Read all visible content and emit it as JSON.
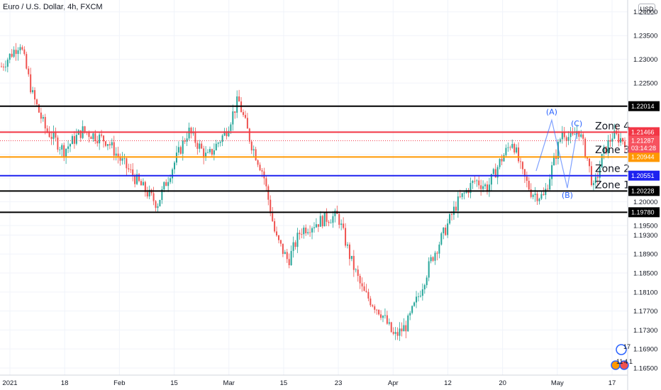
{
  "header": {
    "title": "Euro / U.S. Dollar, 4h, FXCM",
    "currency": "USD"
  },
  "colors": {
    "up": "#26a69a",
    "down": "#ef5350",
    "black": "#000000",
    "red": "#f23645",
    "orange": "#ff9800",
    "blue": "#1e22f0",
    "wave": "#2962ff"
  },
  "chart_data": {
    "type": "candlestick",
    "title": "Euro / U.S. Dollar, 4h, FXCM",
    "ylim": [
      1.1635,
      1.2425
    ],
    "y_ticks": [
      {
        "value": 1.24,
        "label": "1.24000"
      },
      {
        "value": 1.235,
        "label": "1.23500"
      },
      {
        "value": 1.23,
        "label": "1.23000"
      },
      {
        "value": 1.225,
        "label": "1.22500"
      },
      {
        "value": 1.22,
        "label": "1.22000"
      },
      {
        "value": 1.215,
        "label": "1.21500"
      },
      {
        "value": 1.21,
        "label": "1.21000"
      },
      {
        "value": 1.205,
        "label": "1.20500"
      },
      {
        "value": 1.2,
        "label": "1.20000"
      },
      {
        "value": 1.195,
        "label": "1.19500"
      },
      {
        "value": 1.193,
        "label": "1.19300"
      },
      {
        "value": 1.189,
        "label": "1.18900"
      },
      {
        "value": 1.185,
        "label": "1.18500"
      },
      {
        "value": 1.181,
        "label": "1.18100"
      },
      {
        "value": 1.177,
        "label": "1.17700"
      },
      {
        "value": 1.173,
        "label": "1.17300"
      },
      {
        "value": 1.169,
        "label": "1.16900"
      },
      {
        "value": 1.165,
        "label": "1.16500"
      }
    ],
    "x_ticks": [
      "2021",
      "18",
      "Feb",
      "15",
      "Mar",
      "15",
      "23",
      "Apr",
      "12",
      "20",
      "May",
      "17"
    ],
    "price_path": [
      [
        0,
        1.2285
      ],
      [
        0.03,
        1.2335
      ],
      [
        0.05,
        1.2225
      ],
      [
        0.07,
        1.2155
      ],
      [
        0.1,
        1.2108
      ],
      [
        0.13,
        1.215
      ],
      [
        0.17,
        1.2128
      ],
      [
        0.19,
        1.209
      ],
      [
        0.22,
        1.204
      ],
      [
        0.25,
        1.1995
      ],
      [
        0.27,
        1.206
      ],
      [
        0.3,
        1.215
      ],
      [
        0.33,
        1.2092
      ],
      [
        0.36,
        1.2148
      ],
      [
        0.38,
        1.2215
      ],
      [
        0.4,
        1.2125
      ],
      [
        0.42,
        1.206
      ],
      [
        0.44,
        1.1925
      ],
      [
        0.46,
        1.1875
      ],
      [
        0.48,
        1.194
      ],
      [
        0.52,
        1.1965
      ],
      [
        0.54,
        1.197
      ],
      [
        0.56,
        1.188
      ],
      [
        0.58,
        1.181
      ],
      [
        0.61,
        1.1765
      ],
      [
        0.63,
        1.1715
      ],
      [
        0.65,
        1.174
      ],
      [
        0.67,
        1.1805
      ],
      [
        0.69,
        1.188
      ],
      [
        0.71,
        1.1935
      ],
      [
        0.73,
        1.1995
      ],
      [
        0.75,
        1.203
      ],
      [
        0.76,
        1.2045
      ],
      [
        0.78,
        1.203
      ],
      [
        0.8,
        1.2085
      ],
      [
        0.82,
        1.213
      ],
      [
        0.835,
        1.206
      ],
      [
        0.85,
        1.202
      ],
      [
        0.87,
        1.201
      ],
      [
        0.885,
        1.208
      ],
      [
        0.9,
        1.215
      ],
      [
        0.915,
        1.213
      ],
      [
        0.925,
        1.2155
      ],
      [
        0.94,
        1.209
      ],
      [
        0.95,
        1.2025
      ],
      [
        0.965,
        1.21
      ],
      [
        0.98,
        1.214
      ],
      [
        1.0,
        1.2129
      ]
    ],
    "levels": [
      {
        "value": 1.22014,
        "label": "1.22014",
        "color": "#000000"
      },
      {
        "value": 1.21466,
        "label": "1.21466",
        "color": "#f23645"
      },
      {
        "value": 1.20944,
        "label": "1.20944",
        "color": "#ff9800"
      },
      {
        "value": 1.20551,
        "label": "1.20551",
        "color": "#1e22f0"
      },
      {
        "value": 1.20228,
        "label": "1.20228",
        "color": "#000000"
      },
      {
        "value": 1.1978,
        "label": "1.19780",
        "color": "#000000"
      }
    ],
    "current_price": {
      "value": 1.21287,
      "label": "1.21287",
      "countdown": "03:14:28"
    },
    "zones": [
      {
        "label": "Zone 4",
        "value": 1.216
      },
      {
        "label": "Zone 3",
        "value": 1.211
      },
      {
        "label": "Zone 2",
        "value": 1.207
      },
      {
        "label": "Zone 1",
        "value": 1.2036
      }
    ],
    "waves": [
      {
        "label": "(A)",
        "x": 0.885,
        "value": 1.219
      },
      {
        "label": "(C)",
        "x": 0.925,
        "value": 1.2165
      },
      {
        "label": "(B)",
        "x": 0.91,
        "value": 1.2014
      }
    ],
    "events": {
      "a": "17",
      "b1": "11",
      "b2": "4",
      "b3": "1"
    }
  }
}
